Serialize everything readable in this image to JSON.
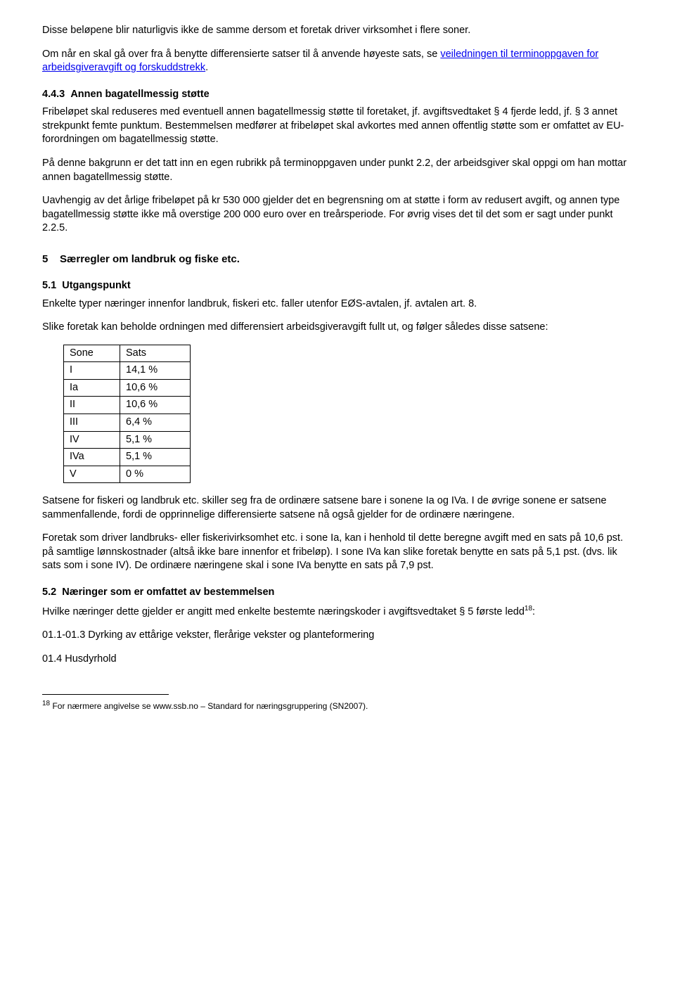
{
  "p1": "Disse beløpene blir naturligvis ikke de samme dersom et foretak driver virksomhet i flere soner.",
  "p2a": "Om når en skal gå over fra å benytte differensierte satser til å anvende høyeste sats, se ",
  "p2link": "veiledningen til terminoppgaven for arbeidsgiveravgift og forskuddstrekk",
  "p2b": ".",
  "s443_num": "4.4.3",
  "s443_title": "Annen bagatellmessig støtte",
  "p3": "Fribeløpet skal reduseres med eventuell annen bagatellmessig støtte til foretaket, jf. avgiftsvedtaket § 4 fjerde ledd, jf. § 3 annet strekpunkt femte punktum. Bestemmelsen medfører at fribeløpet skal avkortes med annen offentlig støtte som er omfattet av EU-forordningen om bagatellmessig støtte.",
  "p4": "På denne bakgrunn er det tatt inn en egen rubrikk på terminoppgaven under punkt 2.2, der arbeidsgiver skal oppgi om han mottar annen bagatellmessig støtte.",
  "p5": "Uavhengig av det årlige fribeløpet på kr 530 000 gjelder det en begrensning om at støtte i form av redusert avgift, og annen type bagatellmessig støtte ikke må overstige 200 000 euro over en treårsperiode. For øvrig vises det til det som er sagt under punkt 2.2.5.",
  "s5_num": "5",
  "s5_title": "Særregler om landbruk og fiske etc.",
  "s51_num": "5.1",
  "s51_title": "Utgangspunkt",
  "p6": "Enkelte typer næringer innenfor landbruk, fiskeri etc. faller utenfor EØS-avtalen, jf. avtalen art. 8.",
  "p7": "Slike foretak kan beholde ordningen med differensiert arbeidsgiveravgift fullt ut, og følger således disse satsene:",
  "table": {
    "header": [
      "Sone",
      "Sats"
    ],
    "rows": [
      [
        "I",
        "14,1 %"
      ],
      [
        "Ia",
        "10,6 %"
      ],
      [
        "II",
        "10,6 %"
      ],
      [
        "III",
        "6,4 %"
      ],
      [
        "IV",
        "5,1 %"
      ],
      [
        "IVa",
        "5,1 %"
      ],
      [
        "V",
        "0 %"
      ]
    ]
  },
  "p8": "Satsene for fiskeri og landbruk etc. skiller seg fra de ordinære satsene bare i sonene Ia og IVa. I de øvrige sonene er satsene sammenfallende, fordi de opprinnelige differensierte satsene nå også gjelder for de ordinære næringene.",
  "p9": "Foretak som driver landbruks- eller fiskerivirksomhet etc. i sone Ia, kan i henhold til dette beregne avgift med en sats på 10,6 pst. på samtlige lønnskostnader (altså ikke bare innenfor et fribeløp). I sone IVa kan slike foretak benytte en sats på 5,1 pst. (dvs. lik sats som i sone IV). De ordinære næringene skal i sone IVa benytte en sats på 7,9 pst.",
  "s52_num": "5.2",
  "s52_title": "Næringer som er omfattet av bestemmelsen",
  "p10a": "Hvilke næringer dette gjelder er angitt med enkelte bestemte næringskoder i avgiftsvedtaket § 5 første ledd",
  "p10sup": "18",
  "p10b": ":",
  "p11": "01.1-01.3 Dyrking av ettårige vekster, flerårige vekster og planteformering",
  "p12": "01.4 Husdyrhold",
  "fn_num": "18",
  "fn_text": " For nærmere angivelse se www.ssb.no – Standard for næringsgruppering (SN2007)."
}
